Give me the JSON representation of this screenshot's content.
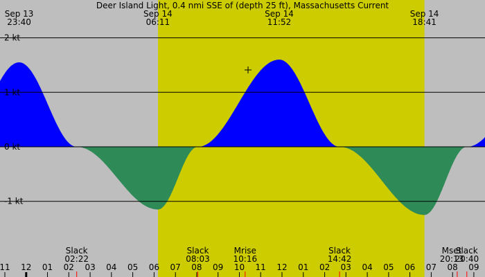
{
  "chart_data": {
    "type": "area",
    "title": "Deer Island Light, 0.4 nmi SSE of (depth 25 ft), Massachusetts Current",
    "y_unit": "kt",
    "ylim": [
      -2.1,
      2.1
    ],
    "y_ticks": [
      {
        "value": 2,
        "label": "2 kt"
      },
      {
        "value": 1,
        "label": "1 kt"
      },
      {
        "value": 0,
        "label": "0 kt"
      },
      {
        "value": -1,
        "label": "-1 kt"
      }
    ],
    "x_ticks": [
      "11",
      "12",
      "01",
      "02",
      "03",
      "04",
      "05",
      "06",
      "07",
      "08",
      "09",
      "10",
      "11",
      "12",
      "01",
      "02",
      "03",
      "04",
      "05",
      "06",
      "07",
      "08",
      "09"
    ],
    "day_shading": {
      "start": "06:11",
      "end": "18:41",
      "color": "#cccc00"
    },
    "night_color": "#bebebe",
    "flood_color": "#0000ff",
    "ebb_color": "#2e8b57",
    "top_events": [
      {
        "date": "Sep 13",
        "time": "23:40",
        "hour": -0.33,
        "value": 1.55
      },
      {
        "date": "Sep 14",
        "time": "06:11",
        "hour": 6.18,
        "value": -1.15
      },
      {
        "date": "Sep 14",
        "time": "11:52",
        "hour": 11.87,
        "value": 1.6
      },
      {
        "date": "Sep 14",
        "time": "18:41",
        "hour": 18.68,
        "value": -1.25
      }
    ],
    "bottom_events": [
      {
        "label": "Slack",
        "time": "02:22",
        "hour": 2.37
      },
      {
        "label": "Slack",
        "time": "08:03",
        "hour": 8.05
      },
      {
        "label": "Mrise",
        "time": "10:16",
        "hour": 10.27
      },
      {
        "label": "Slack",
        "time": "14:42",
        "hour": 14.7
      },
      {
        "label": "Mset",
        "time": "20:13",
        "hour": 20.22
      },
      {
        "label": "Slack",
        "time": "20:40",
        "hour": 20.67
      }
    ],
    "x_hour_range": [
      -13,
      22
    ]
  }
}
